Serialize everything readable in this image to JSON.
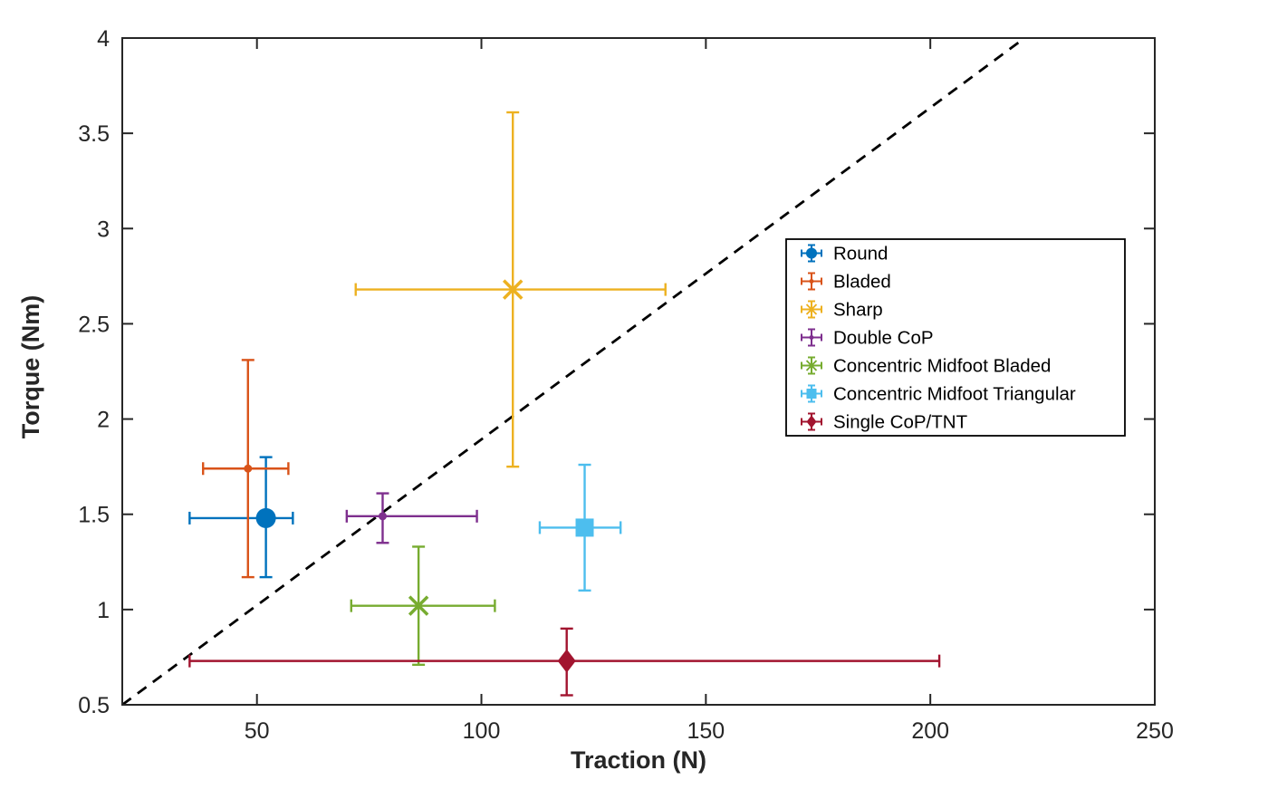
{
  "chart_data": {
    "type": "scatter",
    "title": "",
    "xlabel": "Traction (N)",
    "ylabel": "Torque (Nm)",
    "xlim": [
      20,
      250
    ],
    "ylim": [
      0.5,
      4
    ],
    "xticks": [
      50,
      100,
      150,
      200,
      250
    ],
    "xtick_labels": [
      "50",
      "100",
      "150",
      "200",
      "250"
    ],
    "yticks": [
      0.5,
      1,
      1.5,
      2,
      2.5,
      3,
      3.5,
      4
    ],
    "ytick_labels": [
      "0.5",
      "1",
      "1.5",
      "2",
      "2.5",
      "3",
      "3.5",
      "4"
    ],
    "grid": false,
    "axis_color": "#262626",
    "reference_line": {
      "style": "dashed",
      "color": "#000000",
      "points": [
        [
          20,
          0.5
        ],
        [
          221,
          4
        ]
      ]
    },
    "legend": {
      "position": "northeast-inside",
      "border": true,
      "background": "#ffffff"
    },
    "series": [
      {
        "name": "Round",
        "color": "#0072BD",
        "marker": "circle",
        "x": 52,
        "y": 1.48,
        "x_range": [
          35,
          58
        ],
        "y_range": [
          1.17,
          1.8
        ]
      },
      {
        "name": "Bladed",
        "color": "#D95319",
        "marker": "dot",
        "x": 48,
        "y": 1.74,
        "x_range": [
          38,
          57
        ],
        "y_range": [
          1.17,
          2.31
        ]
      },
      {
        "name": "Sharp",
        "color": "#EDB120",
        "marker": "x",
        "x": 107,
        "y": 2.68,
        "x_range": [
          72,
          141
        ],
        "y_range": [
          1.75,
          3.61
        ]
      },
      {
        "name": "Double CoP",
        "color": "#7E2F8E",
        "marker": "dot",
        "x": 78,
        "y": 1.49,
        "x_range": [
          70,
          99
        ],
        "y_range": [
          1.35,
          1.61
        ]
      },
      {
        "name": "Concentric Midfoot Bladed",
        "color": "#77AC30",
        "marker": "x",
        "x": 86,
        "y": 1.02,
        "x_range": [
          71,
          103
        ],
        "y_range": [
          0.71,
          1.33
        ]
      },
      {
        "name": "Concentric Midfoot Triangular",
        "color": "#4DBEEE",
        "marker": "square",
        "x": 123,
        "y": 1.43,
        "x_range": [
          113,
          131
        ],
        "y_range": [
          1.1,
          1.76
        ]
      },
      {
        "name": "Single CoP/TNT",
        "color": "#A2142F",
        "marker": "diamond",
        "x": 119,
        "y": 0.73,
        "x_range": [
          35,
          202
        ],
        "y_range": [
          0.55,
          0.9
        ]
      }
    ]
  }
}
